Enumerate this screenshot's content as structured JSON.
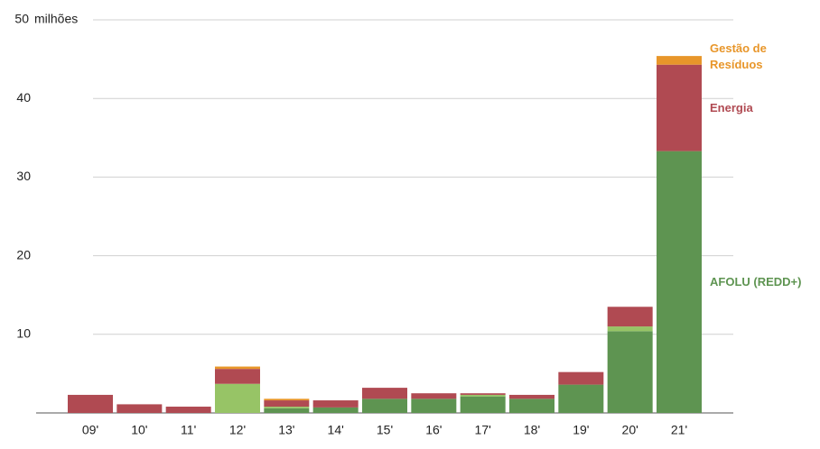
{
  "chart_data": {
    "type": "stacked_bar",
    "y_unit": "milhões",
    "categories": [
      "09'",
      "10'",
      "11'",
      "12'",
      "13'",
      "14'",
      "15'",
      "16'",
      "17'",
      "18'",
      "19'",
      "20'",
      "21'"
    ],
    "series": [
      {
        "name": "AFOLU (REDD+)",
        "color": "#5e9451",
        "values": [
          null,
          null,
          null,
          null,
          0.6,
          0.7,
          1.8,
          1.8,
          2.1,
          1.8,
          3.6,
          10.4,
          33.3
        ]
      },
      {
        "name": null,
        "color": "#97c466",
        "values": [
          null,
          null,
          null,
          3.7,
          0.2,
          null,
          null,
          null,
          0.2,
          null,
          null,
          0.6,
          null
        ]
      },
      {
        "name": "Energia",
        "color": "#b04a52",
        "values": [
          2.3,
          1.1,
          0.8,
          1.9,
          0.8,
          0.9,
          1.4,
          0.7,
          0.2,
          0.5,
          1.6,
          2.5,
          11.0
        ]
      },
      {
        "name": "Gestão de Resíduos",
        "color": "#e8962a",
        "values": [
          null,
          null,
          null,
          0.3,
          0.2,
          null,
          null,
          null,
          null,
          null,
          null,
          null,
          1.1
        ]
      }
    ],
    "ylim": [
      0,
      50
    ],
    "yticks": [
      10,
      20,
      30,
      40,
      50
    ],
    "grid": true
  }
}
